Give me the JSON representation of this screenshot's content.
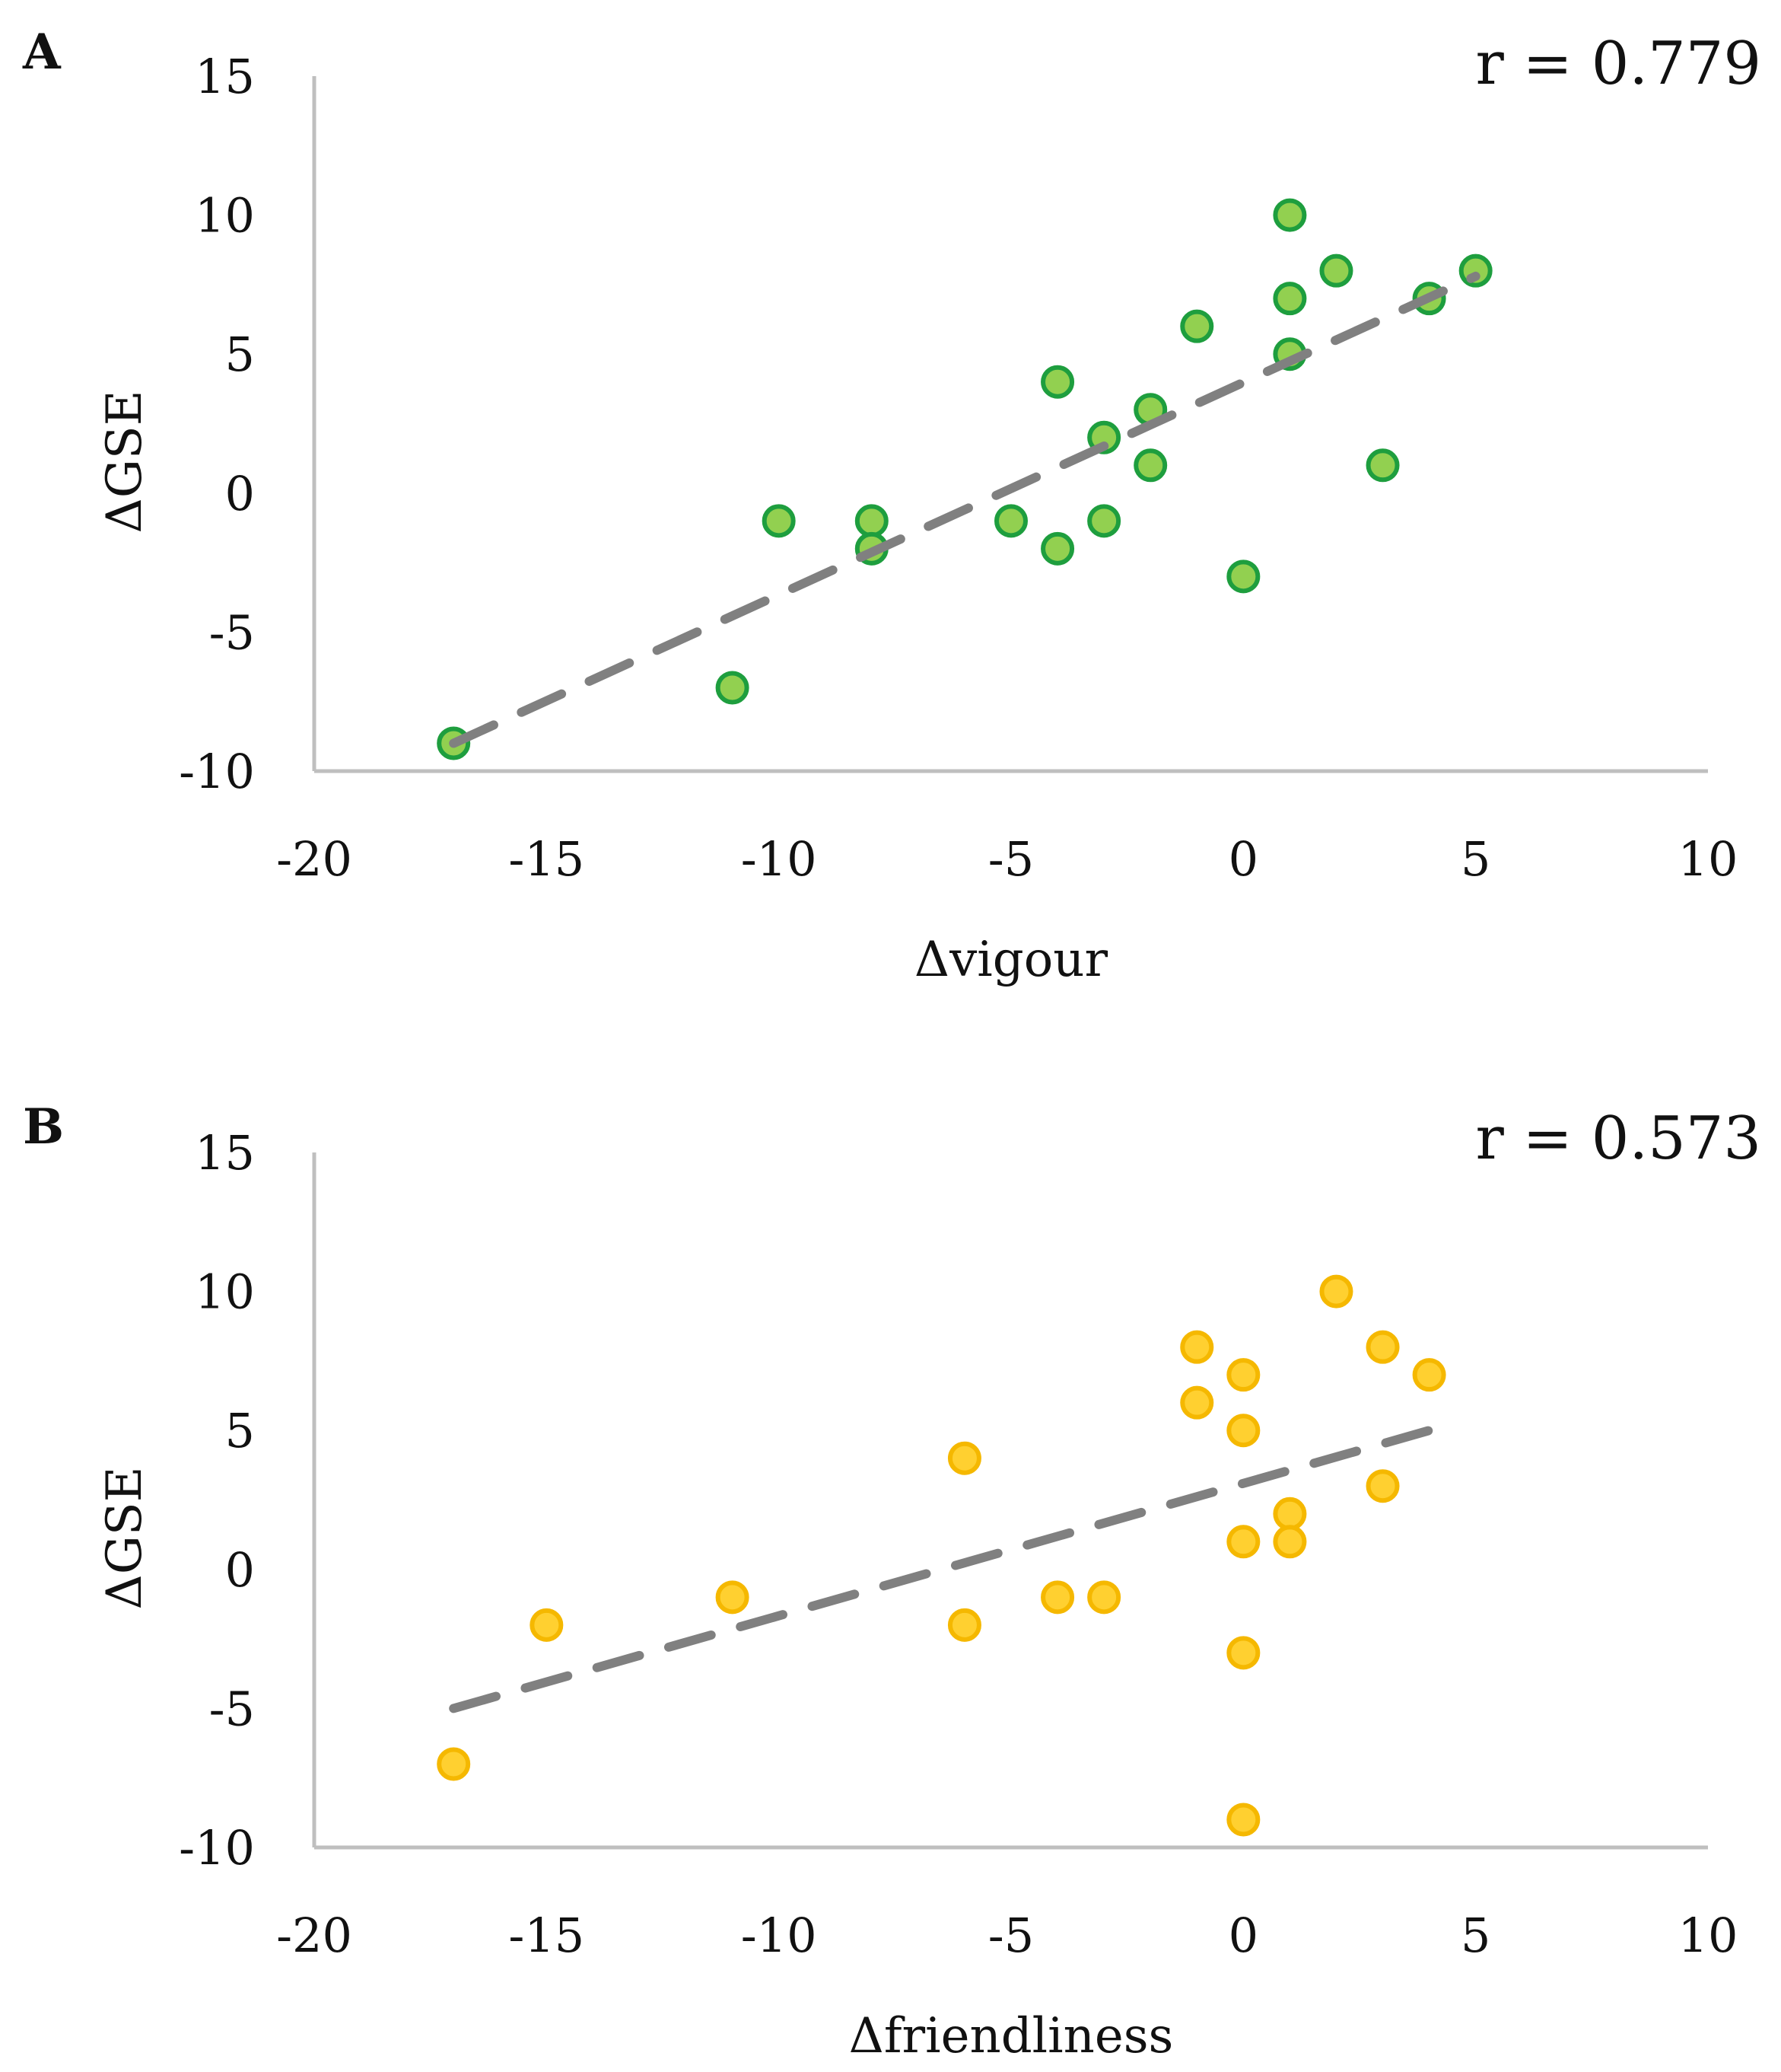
{
  "chart_data": [
    {
      "type": "scatter",
      "panel": "A",
      "annotation": "r = 0.779",
      "xlabel": "Δvigour",
      "ylabel": "ΔGSE",
      "xlim": [
        -20,
        10
      ],
      "ylim": [
        -10,
        15
      ],
      "xticks": [
        "-20",
        "-15",
        "-10",
        "-5",
        "0",
        "5",
        "10"
      ],
      "yticks": [
        "15",
        "10",
        "5",
        "0",
        "-5",
        "-10"
      ],
      "colors": {
        "fill": "#92d050",
        "stroke": "#1e9e3e",
        "trend": "#808080",
        "axis": "#bfbfbf"
      },
      "points": [
        [
          -17,
          -9
        ],
        [
          -11,
          -7
        ],
        [
          -10,
          -1
        ],
        [
          -8,
          -1
        ],
        [
          -8,
          -2
        ],
        [
          -5,
          -1
        ],
        [
          -4,
          4
        ],
        [
          -4,
          -2
        ],
        [
          -3,
          2
        ],
        [
          -3,
          -1
        ],
        [
          -2,
          3
        ],
        [
          -2,
          1
        ],
        [
          -1,
          6
        ],
        [
          0,
          -3
        ],
        [
          1,
          10
        ],
        [
          1,
          7
        ],
        [
          1,
          5
        ],
        [
          2,
          8
        ],
        [
          3,
          1
        ],
        [
          4,
          7
        ],
        [
          5,
          8
        ]
      ],
      "trendline": {
        "x": [
          -17,
          5
        ],
        "y": [
          -9,
          7.8
        ]
      }
    },
    {
      "type": "scatter",
      "panel": "B",
      "annotation": "r = 0.573",
      "xlabel": "Δfriendliness",
      "ylabel": "ΔGSE",
      "xlim": [
        -20,
        10
      ],
      "ylim": [
        -10,
        15
      ],
      "xticks": [
        "-20",
        "-15",
        "-10",
        "-5",
        "0",
        "5",
        "10"
      ],
      "yticks": [
        "15",
        "10",
        "5",
        "0",
        "-5",
        "-10"
      ],
      "colors": {
        "fill": "#ffd030",
        "stroke": "#f5b800",
        "trend": "#808080",
        "axis": "#bfbfbf"
      },
      "points": [
        [
          -17,
          -7
        ],
        [
          -15,
          -2
        ],
        [
          -11,
          -1
        ],
        [
          -6,
          4
        ],
        [
          -6,
          -2
        ],
        [
          -4,
          -1
        ],
        [
          -3,
          -1
        ],
        [
          -1,
          8
        ],
        [
          -1,
          6
        ],
        [
          0,
          7
        ],
        [
          0,
          5
        ],
        [
          0,
          1
        ],
        [
          0,
          -3
        ],
        [
          0,
          -9
        ],
        [
          1,
          2
        ],
        [
          1,
          1
        ],
        [
          2,
          10
        ],
        [
          3,
          8
        ],
        [
          3,
          3
        ],
        [
          4,
          7
        ]
      ],
      "trendline": {
        "x": [
          -17,
          4
        ],
        "y": [
          -5,
          5
        ]
      }
    }
  ]
}
